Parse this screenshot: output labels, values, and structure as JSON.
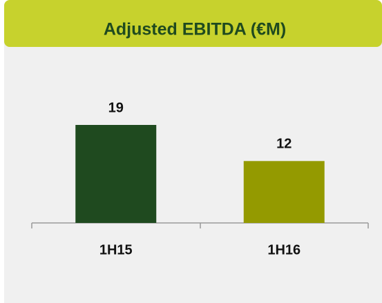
{
  "chart_data": {
    "type": "bar",
    "title": "Adjusted EBITDA (€M)",
    "categories": [
      "1H15",
      "1H16"
    ],
    "values": [
      19,
      12
    ],
    "colors": [
      "#1f4a1f",
      "#949a00"
    ]
  }
}
